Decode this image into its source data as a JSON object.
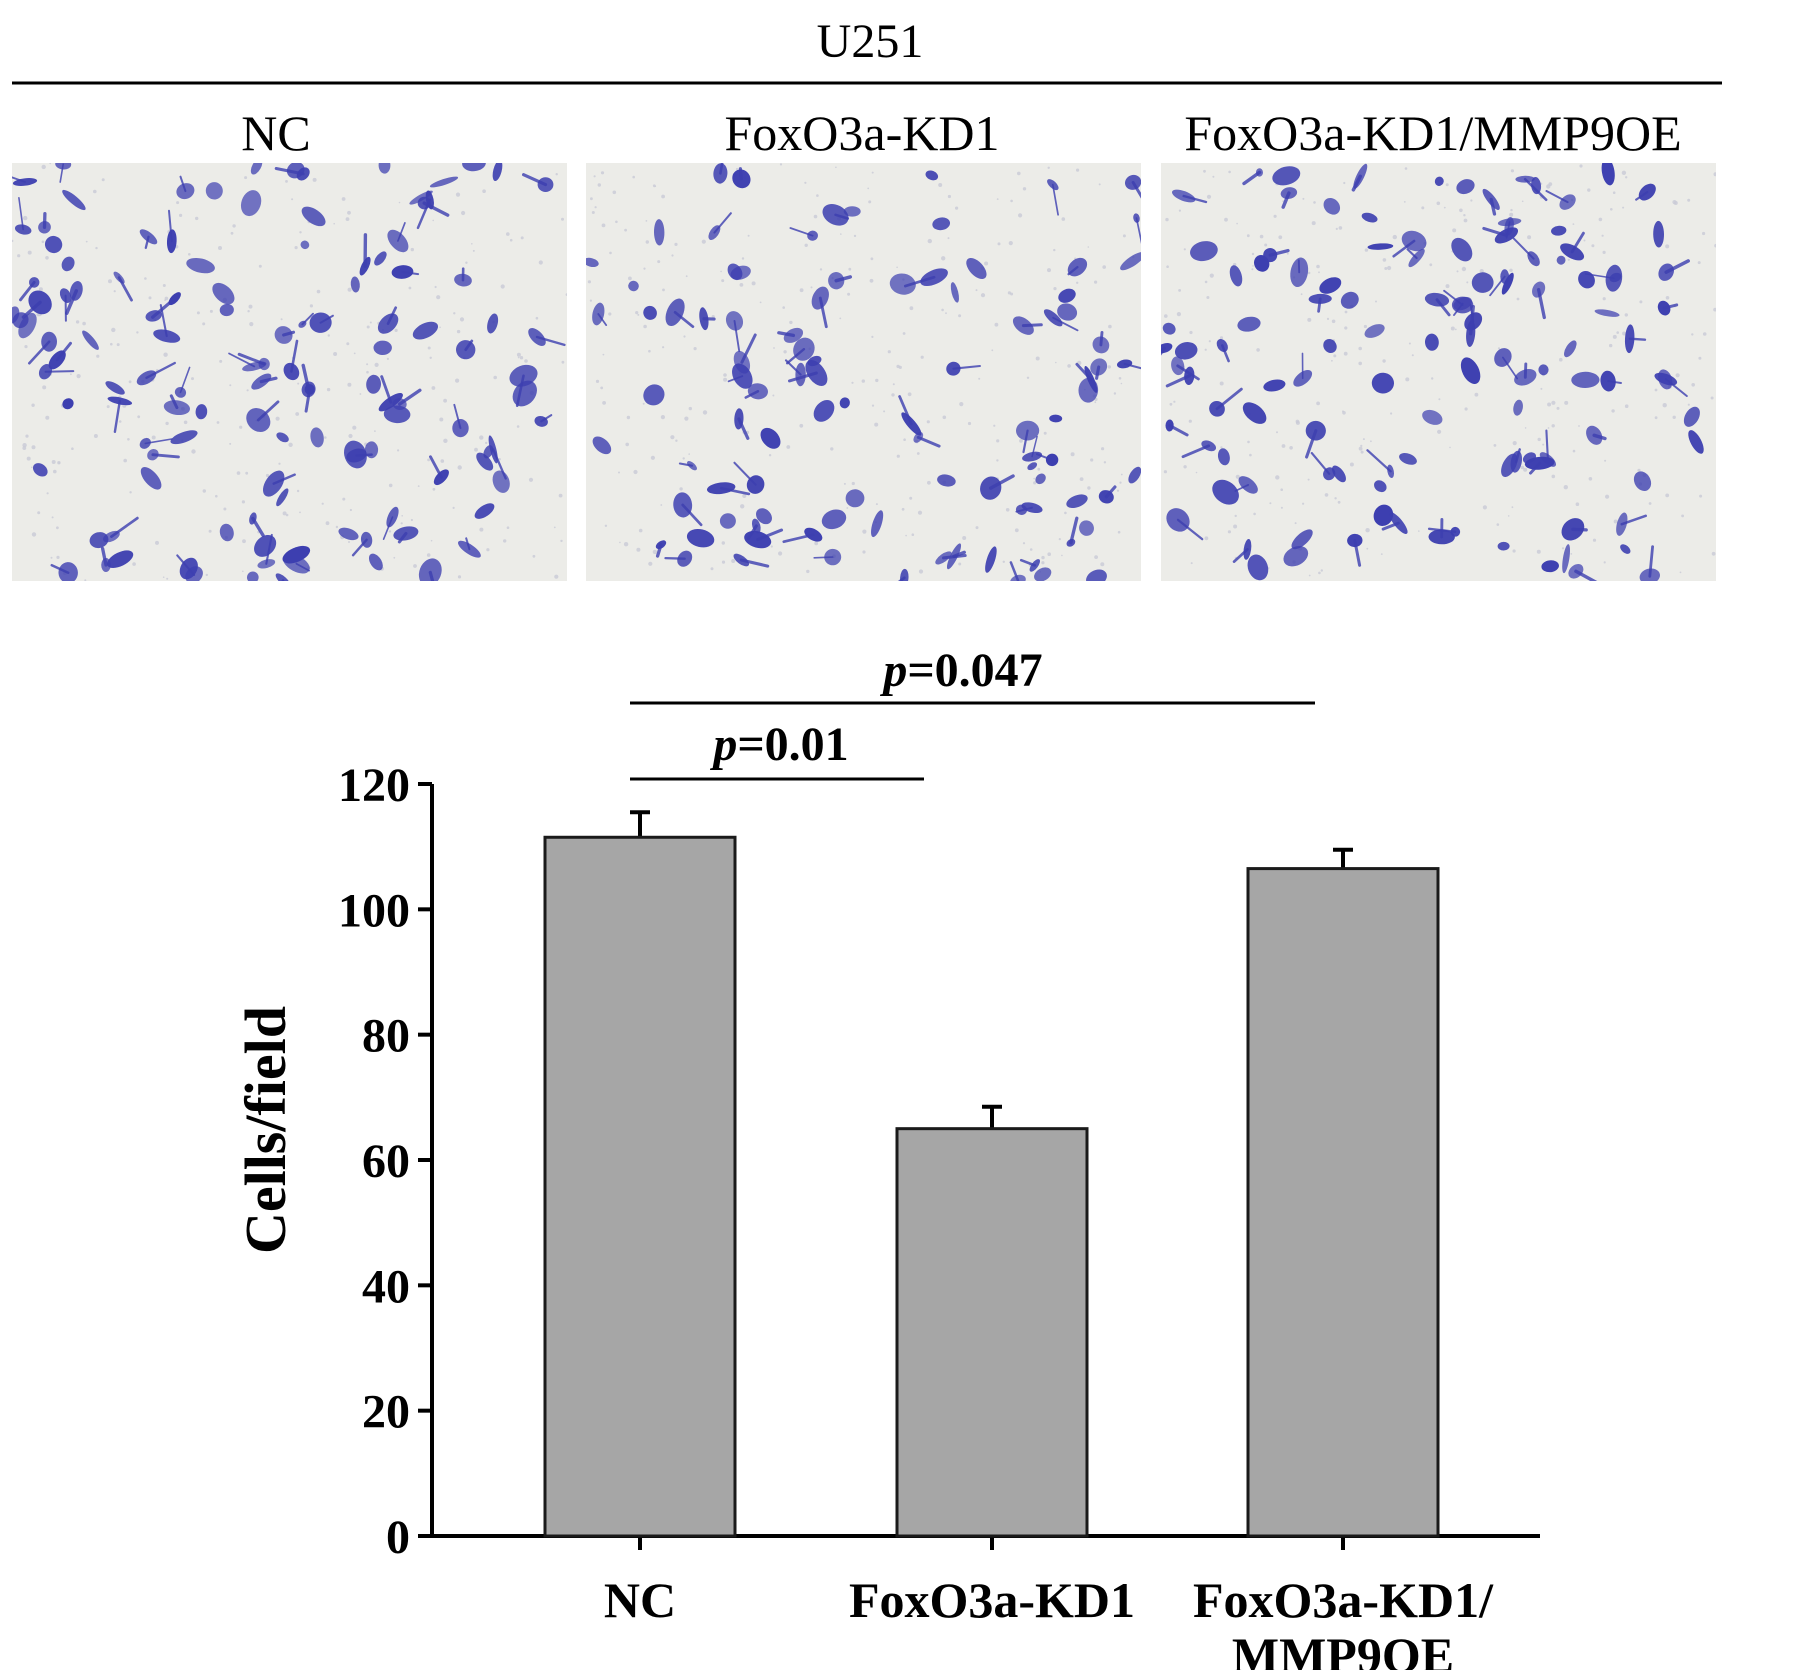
{
  "figure": {
    "cell_line": "U251",
    "panels": [
      {
        "label": "NC"
      },
      {
        "label": "FoxO3a-KD1"
      },
      {
        "label": "FoxO3a-KD1/MMP9OE"
      }
    ]
  },
  "colors": {
    "bar_fill": "#a6a6a6",
    "bar_stroke": "#1a1a1a",
    "stain": "#3d3fb0",
    "membrane": "#ecece8"
  },
  "chart_data": {
    "type": "bar",
    "categories": [
      "NC",
      "FoxO3a-KD1",
      "FoxO3a-KD1/\nMMP9OE"
    ],
    "values": [
      111.5,
      65,
      106.5
    ],
    "errors": [
      4,
      3.5,
      3
    ],
    "ylabel": "Cells/field",
    "xlabel": "",
    "ylim": [
      0,
      120
    ],
    "yticks": [
      0,
      20,
      40,
      60,
      80,
      100,
      120
    ],
    "grid": false,
    "significance": [
      {
        "between": [
          0,
          1
        ],
        "label_p": "p",
        "label_value": "=0.01"
      },
      {
        "between": [
          0,
          2
        ],
        "label_p": "p",
        "label_value": "=0.047"
      }
    ]
  }
}
